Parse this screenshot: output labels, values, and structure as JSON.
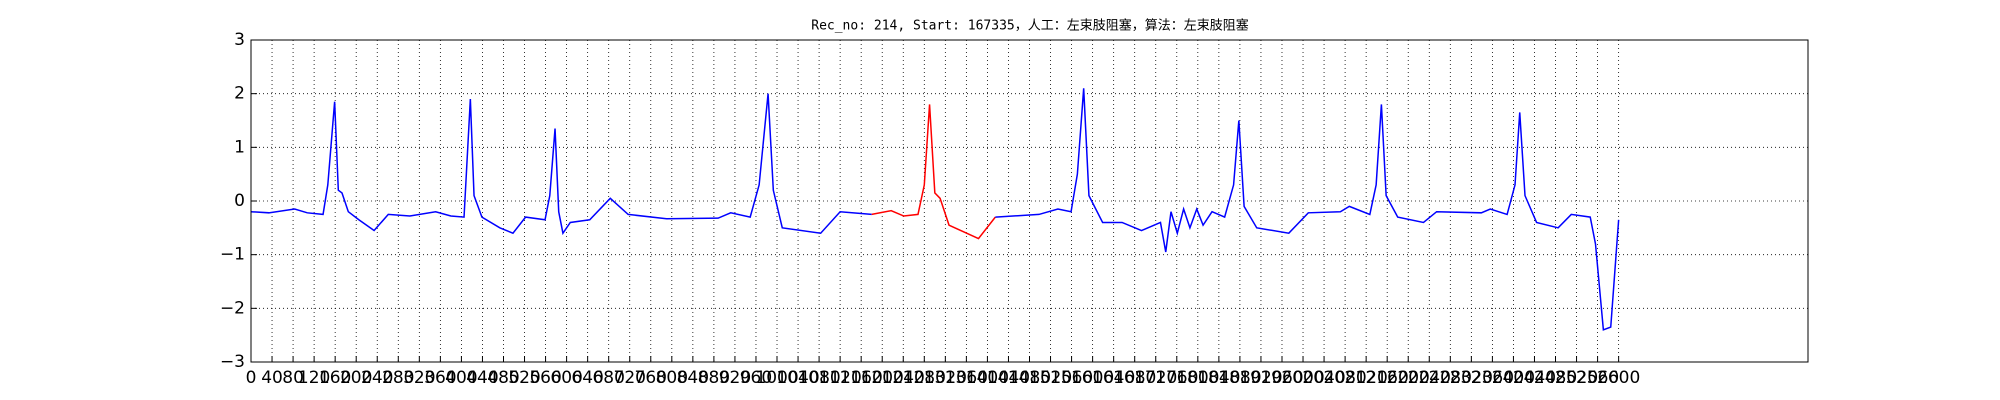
{
  "chart_data": {
    "type": "line",
    "title": "Rec_no: 214, Start: 167335，人工：左束肢阻塞，算法：左束肢阻塞",
    "xlim": [
      0,
      2960
    ],
    "xticks": [
      0,
      40,
      80,
      120,
      160,
      200,
      240,
      280,
      320,
      360,
      400,
      440,
      480,
      520,
      560,
      600,
      640,
      680,
      720,
      760,
      800,
      840,
      880,
      920,
      960,
      1000,
      1040,
      1080,
      1120,
      1160,
      1200,
      1240,
      1280,
      1320,
      1360,
      1400,
      1440,
      1480,
      1520,
      1560,
      1600,
      1640,
      1680,
      1720,
      1760,
      1800,
      1840,
      1880,
      1920,
      1960,
      2000,
      2040,
      2080,
      2120,
      2160,
      2200,
      2240,
      2280,
      2320,
      2360,
      2400,
      2440,
      2480,
      2520,
      2560,
      2600
    ],
    "ylim": [
      -3,
      3
    ],
    "yticks": [
      {
        "value": -3,
        "label": "−3"
      },
      {
        "value": -2,
        "label": "−2"
      },
      {
        "value": -1,
        "label": "−1"
      },
      0,
      1,
      2,
      3
    ],
    "grid": true,
    "series": [
      {
        "color": "#0000ff",
        "x": [
          0,
          34,
          83,
          107,
          137,
          146,
          159,
          166,
          173,
          185,
          205,
          234,
          261,
          302,
          351,
          380,
          405,
          417,
          424,
          439,
          473,
          498,
          522,
          559,
          568,
          578,
          585,
          593,
          607,
          644,
          683,
          717,
          790,
          888,
          912,
          949,
          966,
          983,
          993,
          1010,
          1083,
          1120,
          1180
        ],
        "values": [
          -0.2,
          -0.22,
          -0.15,
          -0.22,
          -0.25,
          0.3,
          1.85,
          0.2,
          0.15,
          -0.2,
          -0.35,
          -0.55,
          -0.25,
          -0.28,
          -0.2,
          -0.28,
          -0.3,
          1.9,
          0.1,
          -0.3,
          -0.5,
          -0.6,
          -0.3,
          -0.35,
          0.1,
          1.35,
          -0.2,
          -0.6,
          -0.4,
          -0.35,
          0.05,
          -0.25,
          -0.33,
          -0.32,
          -0.22,
          -0.3,
          0.3,
          2.0,
          0.2,
          -0.5,
          -0.6,
          -0.2,
          -0.25
        ]
      },
      {
        "color": "#ff0000",
        "x": [
          1180,
          1217,
          1241,
          1268,
          1280,
          1290,
          1300,
          1310,
          1327,
          1383,
          1415
        ],
        "values": [
          -0.25,
          -0.18,
          -0.28,
          -0.25,
          0.3,
          1.8,
          0.15,
          0.05,
          -0.45,
          -0.7,
          -0.3
        ]
      },
      {
        "color": "#0000ff",
        "x": [
          1415,
          1498,
          1534,
          1559,
          1571,
          1583,
          1593,
          1619,
          1656,
          1693,
          1729,
          1739,
          1749,
          1761,
          1773,
          1785,
          1798,
          1810,
          1827,
          1851,
          1868,
          1878,
          1888,
          1912,
          1973,
          2010,
          2071,
          2088,
          2127,
          2139,
          2149,
          2158,
          2180,
          2229,
          2254,
          2339,
          2356,
          2388,
          2403,
          2412,
          2422,
          2444,
          2485,
          2510,
          2546,
          2556,
          2571,
          2585,
          2600
        ],
        "values": [
          -0.3,
          -0.25,
          -0.15,
          -0.2,
          0.5,
          2.1,
          0.1,
          -0.4,
          -0.4,
          -0.55,
          -0.4,
          -0.95,
          -0.2,
          -0.6,
          -0.15,
          -0.5,
          -0.15,
          -0.45,
          -0.2,
          -0.3,
          0.3,
          1.5,
          -0.1,
          -0.5,
          -0.6,
          -0.22,
          -0.2,
          -0.1,
          -0.25,
          0.3,
          1.8,
          0.1,
          -0.3,
          -0.4,
          -0.2,
          -0.22,
          -0.15,
          -0.25,
          0.3,
          1.65,
          0.1,
          -0.4,
          -0.5,
          -0.25,
          -0.3,
          -0.8,
          -2.4,
          -2.35,
          -0.35
        ]
      }
    ]
  }
}
